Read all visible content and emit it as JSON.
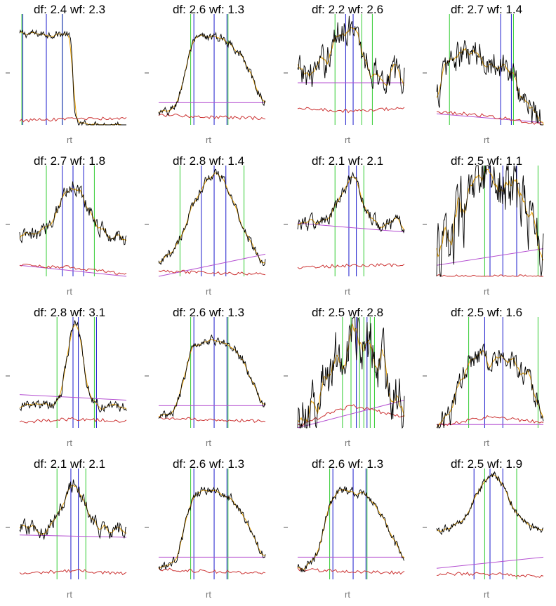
{
  "colors": {
    "signal": "#000000",
    "smooth": "#e8a000",
    "baseline": "#cc3333",
    "trend": "#b44fd1",
    "peak_line": "#1a1acc",
    "boundary_line": "#33cc33"
  },
  "chart_data": [
    {
      "type": "line",
      "title": "df: 2.4 wf: 2.3",
      "xlabel": "rt",
      "shape": "plateau",
      "params": {
        "c": 0.02,
        "w": 0.96,
        "rise": 0.005,
        "noise": 0.06,
        "low": 0.0,
        "high": 0.82
      },
      "green": [
        0.02,
        0.25,
        0.4
      ],
      "blue": [
        0.03,
        0.25,
        0.4
      ],
      "baseline": [
        0.04,
        0.05,
        0.06
      ],
      "trend": null
    },
    {
      "type": "line",
      "title": "df: 2.6 wf: 1.3",
      "xlabel": "rt",
      "shape": "plateau",
      "params": {
        "c": 0.55,
        "w": 0.62,
        "rise": 0.04,
        "noise": 0.07,
        "low": 0.1,
        "high": 0.8
      },
      "green": [
        0.3,
        0.65
      ],
      "blue": [
        0.33,
        0.52,
        0.64
      ],
      "baseline": [
        0.09,
        0.07,
        0.06
      ],
      "trend": [
        0.2,
        0.2
      ]
    },
    {
      "type": "line",
      "title": "df: 2.2 wf: 2.6",
      "xlabel": "rt",
      "shape": "peak",
      "params": {
        "c": 0.45,
        "w": 0.12,
        "noise": 0.25,
        "low": 0.45,
        "high": 0.9
      },
      "green": [
        0.35,
        0.6,
        0.7
      ],
      "blue": [
        0.45,
        0.52
      ],
      "baseline": [
        0.15,
        0.12,
        0.15
      ],
      "trend": [
        0.38,
        0.38
      ]
    },
    {
      "type": "line",
      "title": "df: 2.7 wf: 1.4",
      "xlabel": "rt",
      "shape": "plateau",
      "params": {
        "c": 0.4,
        "w": 0.75,
        "rise": 0.04,
        "noise": 0.25,
        "low": 0.0,
        "high": 0.62
      },
      "green": [
        0.12,
        0.72
      ],
      "blue": [
        0.6,
        0.7
      ],
      "baseline": [
        0.12,
        0.08,
        0.0
      ],
      "trend": [
        0.1,
        0.02
      ]
    },
    {
      "type": "line",
      "title": "df: 2.7 wf: 1.8",
      "xlabel": "rt",
      "shape": "peak",
      "params": {
        "c": 0.5,
        "w": 0.14,
        "noise": 0.12,
        "low": 0.35,
        "high": 0.82
      },
      "green": [
        0.25,
        0.7
      ],
      "blue": [
        0.4,
        0.5,
        0.6
      ],
      "baseline": [
        0.1,
        0.08,
        0.02
      ],
      "trend": [
        0.1,
        0.0
      ]
    },
    {
      "type": "line",
      "title": "df: 2.8 wf: 1.4",
      "xlabel": "rt",
      "shape": "peak",
      "params": {
        "c": 0.52,
        "w": 0.22,
        "noise": 0.08,
        "low": 0.05,
        "high": 0.92
      },
      "green": [
        0.2,
        0.8
      ],
      "blue": [
        0.4,
        0.52,
        0.63
      ],
      "baseline": [
        0.05,
        0.03,
        0.02
      ],
      "trend": [
        0.0,
        0.2
      ]
    },
    {
      "type": "line",
      "title": "df: 2.1 wf: 2.1",
      "xlabel": "rt",
      "shape": "peak",
      "params": {
        "c": 0.5,
        "w": 0.1,
        "noise": 0.12,
        "low": 0.48,
        "high": 0.85
      },
      "green": [
        0.35,
        0.62
      ],
      "blue": [
        0.48,
        0.55
      ],
      "baseline": [
        0.08,
        0.1,
        0.1
      ],
      "trend": [
        0.48,
        0.4
      ]
    },
    {
      "type": "line",
      "title": "df: 2.5 wf: 1.1",
      "xlabel": "rt",
      "shape": "noisy",
      "params": {
        "c": 0.55,
        "w": 0.3,
        "noise": 0.5,
        "low": 0.0,
        "high": 0.9
      },
      "green": [
        0.45,
        0.95
      ],
      "blue": [
        0.5,
        0.62,
        0.75
      ],
      "baseline": [
        0.0,
        0.0,
        0.0
      ],
      "trend": [
        0.1,
        0.25
      ]
    },
    {
      "type": "line",
      "title": "df: 2.8 wf: 3.1",
      "xlabel": "rt",
      "shape": "peak",
      "params": {
        "c": 0.52,
        "w": 0.07,
        "noise": 0.08,
        "low": 0.2,
        "high": 0.95
      },
      "green": [
        0.35,
        0.7
      ],
      "blue": [
        0.5,
        0.55,
        0.72
      ],
      "baseline": [
        0.05,
        0.08,
        0.06
      ],
      "trend": [
        0.3,
        0.25
      ]
    },
    {
      "type": "line",
      "title": "df: 2.6 wf: 1.3",
      "xlabel": "rt",
      "shape": "plateau",
      "params": {
        "c": 0.55,
        "w": 0.62,
        "rise": 0.04,
        "noise": 0.07,
        "low": 0.1,
        "high": 0.8
      },
      "green": [
        0.3,
        0.65
      ],
      "blue": [
        0.33,
        0.52,
        0.64
      ],
      "baseline": [
        0.09,
        0.07,
        0.06
      ],
      "trend": [
        0.2,
        0.2
      ]
    },
    {
      "type": "line",
      "title": "df: 2.5 wf: 2.8",
      "xlabel": "rt",
      "shape": "noisy",
      "params": {
        "c": 0.55,
        "w": 0.25,
        "noise": 0.45,
        "low": 0.0,
        "high": 0.85
      },
      "green": [
        0.42,
        0.5,
        0.58,
        0.62,
        0.68,
        0.72
      ],
      "blue": [
        0.55,
        0.65
      ],
      "baseline": [
        0.02,
        0.2,
        0.1
      ],
      "trend": [
        0.0,
        0.25
      ]
    },
    {
      "type": "line",
      "title": "df: 2.5 wf: 1.6",
      "xlabel": "rt",
      "shape": "plateau",
      "params": {
        "c": 0.55,
        "w": 0.7,
        "rise": 0.04,
        "noise": 0.18,
        "low": 0.02,
        "high": 0.65
      },
      "green": [
        0.3,
        0.95
      ],
      "blue": [
        0.45,
        0.62
      ],
      "baseline": [
        0.02,
        0.1,
        0.05
      ],
      "trend": [
        0.03,
        0.03
      ]
    },
    {
      "type": "line",
      "title": "df: 2.1 wf: 2.1",
      "xlabel": "rt",
      "shape": "peak",
      "params": {
        "c": 0.5,
        "w": 0.1,
        "noise": 0.12,
        "low": 0.45,
        "high": 0.85
      },
      "green": [
        0.35,
        0.62
      ],
      "blue": [
        0.48,
        0.55
      ],
      "baseline": [
        0.05,
        0.08,
        0.05
      ],
      "trend": [
        0.4,
        0.38
      ]
    },
    {
      "type": "line",
      "title": "df: 2.6 wf: 1.3",
      "xlabel": "rt",
      "shape": "plateau",
      "params": {
        "c": 0.55,
        "w": 0.62,
        "rise": 0.04,
        "noise": 0.07,
        "low": 0.1,
        "high": 0.8
      },
      "green": [
        0.3,
        0.65
      ],
      "blue": [
        0.33,
        0.52,
        0.64
      ],
      "baseline": [
        0.09,
        0.07,
        0.06
      ],
      "trend": [
        0.2,
        0.2
      ]
    },
    {
      "type": "line",
      "title": "df: 2.6 wf: 1.3",
      "xlabel": "rt",
      "shape": "plateau",
      "params": {
        "c": 0.55,
        "w": 0.62,
        "rise": 0.04,
        "noise": 0.07,
        "low": 0.1,
        "high": 0.8
      },
      "green": [
        0.3,
        0.65
      ],
      "blue": [
        0.33,
        0.52,
        0.64
      ],
      "baseline": [
        0.09,
        0.07,
        0.06
      ],
      "trend": [
        0.2,
        0.2
      ]
    },
    {
      "type": "line",
      "title": "df: 2.5 wf: 1.9",
      "xlabel": "rt",
      "shape": "peak",
      "params": {
        "c": 0.52,
        "w": 0.15,
        "noise": 0.06,
        "low": 0.45,
        "high": 0.95
      },
      "green": [
        0.45,
        0.75
      ],
      "blue": [
        0.35,
        0.5,
        0.62
      ],
      "baseline": [
        0.05,
        0.05,
        0.03
      ],
      "trend": [
        0.1,
        0.2
      ]
    }
  ]
}
